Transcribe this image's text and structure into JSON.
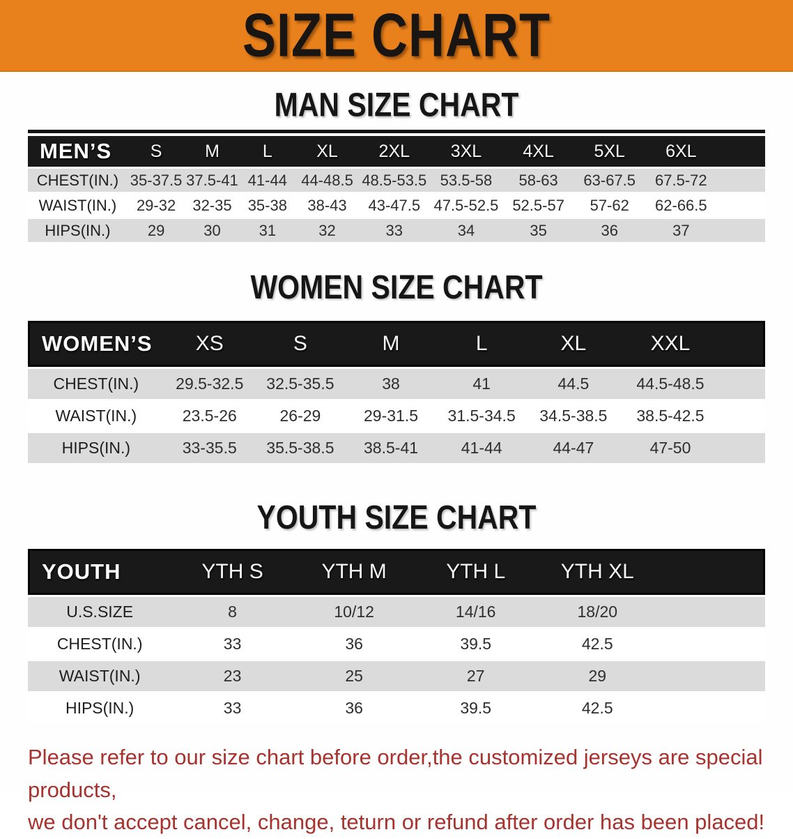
{
  "banner": {
    "title": "SIZE CHART",
    "bg_color": "#E8811C",
    "text_color": "#181512"
  },
  "sections": [
    {
      "id": "men",
      "title": "MAN SIZE CHART",
      "table": {
        "header_label": "MEN’S",
        "columns": [
          "S",
          "M",
          "L",
          "XL",
          "2XL",
          "3XL",
          "4XL",
          "5XL",
          "6XL"
        ],
        "rows": [
          {
            "label": "CHEST(IN.)",
            "values": [
              "35-37.5",
              "37.5-41",
              "41-44",
              "44-48.5",
              "48.5-53.5",
              "53.5-58",
              "58-63",
              "63-67.5",
              "67.5-72"
            ]
          },
          {
            "label": "WAIST(IN.)",
            "values": [
              "29-32",
              "32-35",
              "35-38",
              "38-43",
              "43-47.5",
              "47.5-52.5",
              "52.5-57",
              "57-62",
              "62-66.5"
            ]
          },
          {
            "label": "HIPS(IN.)",
            "values": [
              "29",
              "30",
              "31",
              "32",
              "33",
              "34",
              "35",
              "36",
              "37"
            ]
          }
        ]
      }
    },
    {
      "id": "women",
      "title": "WOMEN SIZE CHART",
      "table": {
        "header_label": "WOMEN’S",
        "columns": [
          "XS",
          "S",
          "M",
          "L",
          "XL",
          "XXL"
        ],
        "rows": [
          {
            "label": "CHEST(IN.)",
            "values": [
              "29.5-32.5",
              "32.5-35.5",
              "38",
              "41",
              "44.5",
              "44.5-48.5"
            ]
          },
          {
            "label": "WAIST(IN.)",
            "values": [
              "23.5-26",
              "26-29",
              "29-31.5",
              "31.5-34.5",
              "34.5-38.5",
              "38.5-42.5"
            ]
          },
          {
            "label": "HIPS(IN.)",
            "values": [
              "33-35.5",
              "35.5-38.5",
              "38.5-41",
              "41-44",
              "44-47",
              "47-50"
            ]
          }
        ]
      }
    },
    {
      "id": "youth",
      "title": "YOUTH SIZE CHART",
      "table": {
        "header_label": "YOUTH",
        "columns": [
          "YTH S",
          "YTH M",
          "YTH L",
          "YTH XL"
        ],
        "rows": [
          {
            "label": "U.S.SIZE",
            "values": [
              "8",
              "10/12",
              "14/16",
              "18/20"
            ]
          },
          {
            "label": "CHEST(IN.)",
            "values": [
              "33",
              "36",
              "39.5",
              "42.5"
            ]
          },
          {
            "label": "WAIST(IN.)",
            "values": [
              "23",
              "25",
              "27",
              "29"
            ]
          },
          {
            "label": "HIPS(IN.)",
            "values": [
              "33",
              "36",
              "39.5",
              "42.5"
            ]
          }
        ]
      }
    }
  ],
  "footer": {
    "text_color": "#A8322D",
    "lines": [
      "Please refer to our size chart before order,the customized jerseys are special products,",
      "we don't accept cancel, change, teturn or refund after order has been placed!"
    ]
  }
}
